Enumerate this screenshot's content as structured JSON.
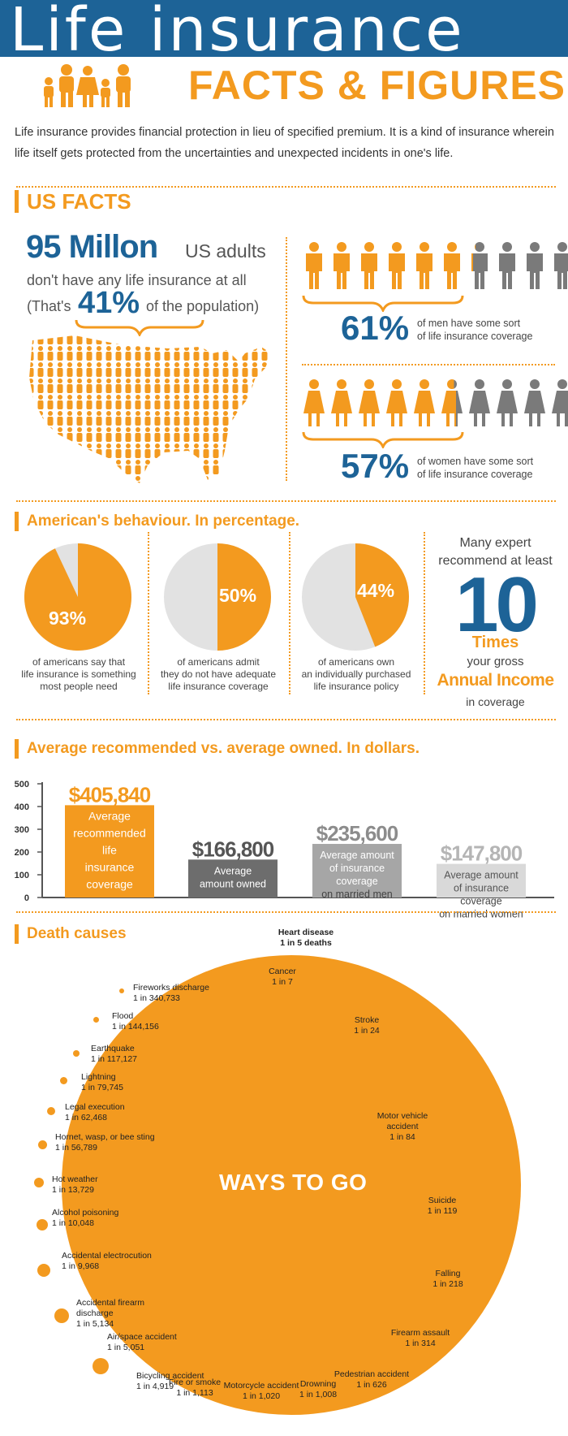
{
  "header": {
    "title": "Life insurance",
    "subtitle": "FACTS & FIGURES",
    "intro": "Life insurance provides financial protection in lieu of specified premium. It is a kind of insurance wherein life itself gets protected from the uncertainties and unexpected incidents in one's life."
  },
  "us_facts": {
    "title": "US FACTS",
    "big_number": "95 Millon",
    "us_adults": "US adults",
    "dont_have": "don't have any life insurance at all",
    "thats": "(That's",
    "pct": "41%",
    "of_population": "of the population)",
    "men": {
      "pct": "61%",
      "text_line1": "of men have some sort",
      "text_line2": "of life insurance coverage",
      "fraction": 0.61
    },
    "women": {
      "pct": "57%",
      "text_line1": "of women have some sort",
      "text_line2": "of life insurance coverage",
      "fraction": 0.57
    }
  },
  "behaviour": {
    "title": "American's behaviour. In percentage.",
    "pies": [
      {
        "pct": "93%",
        "value": 93,
        "line1": "of americans say that",
        "line2": "life insurance is something",
        "line3": "most people need"
      },
      {
        "pct": "50%",
        "value": 50,
        "line1": "of americans admit",
        "line2": "they do not have adequate",
        "line3": "life insurance coverage"
      },
      {
        "pct": "44%",
        "value": 44,
        "line1": "of americans own",
        "line2": "an individually purchased",
        "line3": "life insurance policy"
      }
    ],
    "expert": {
      "line1": "Many expert",
      "line2": "recommend at least",
      "number": "10",
      "times": "Times",
      "gross": "your gross",
      "annual": "Annual Income",
      "coverage": "in coverage"
    }
  },
  "averages": {
    "title": "Average recommended vs. average owned. In dollars.",
    "colors": {
      "orange": "#f39a1f",
      "dark": "#6d6d6d",
      "mid": "#a6a6a6",
      "light": "#d9d9d9"
    }
  },
  "chart_data": {
    "type": "bar",
    "ylim": [
      0,
      500
    ],
    "yticks": [
      "0",
      "100",
      "200",
      "300",
      "400",
      "500"
    ],
    "categories": [
      "Average recommended life insurance coverage",
      "Average amount owned",
      "Average amount of insurance coverage on married men",
      "Average amount of insurance coverage on married women"
    ],
    "values": [
      405.84,
      166.8,
      235.6,
      147.8
    ],
    "value_labels": [
      "$405,840",
      "$166,800",
      "$235,600",
      "$147,800"
    ],
    "bar_lines": [
      [
        "Average",
        "recommended",
        "life",
        "insurance",
        "coverage"
      ],
      [
        "Average",
        "amount owned"
      ],
      [
        "Average amount",
        "of insurance",
        "coverage",
        "on married men"
      ],
      [
        "Average amount",
        "of insurance",
        "coverage",
        "on married women"
      ]
    ]
  },
  "death": {
    "title": "Death causes",
    "center": "WAYS TO GO",
    "top": {
      "name": "Heart disease",
      "odds": "1 in 5 deaths"
    },
    "inside": [
      {
        "name": "Cancer",
        "odds": "1 in 7"
      },
      {
        "name": "Stroke",
        "odds": "1 in 24"
      },
      {
        "name": "Motor vehicle accident",
        "odds": "1 in 84"
      },
      {
        "name": "Suicide",
        "odds": "1 in 119"
      },
      {
        "name": "Falling",
        "odds": "1 in 218"
      },
      {
        "name": "Firearm assault",
        "odds": "1 in 314"
      },
      {
        "name": "Pedestrian accident",
        "odds": "1 in 626"
      },
      {
        "name": "Drowning",
        "odds": "1 in 1,008"
      },
      {
        "name": "Motorcycle accident",
        "odds": "1 in 1,020"
      },
      {
        "name": "Fire or smoke",
        "odds": "1 in 1,113"
      },
      {
        "name": "Bicycling accident",
        "odds": "1 in 4,919"
      }
    ],
    "outside": [
      {
        "name": "Fireworks discharge",
        "odds": "1 in 340,733"
      },
      {
        "name": "Flood",
        "odds": "1 in 144,156"
      },
      {
        "name": "Earthquake",
        "odds": "1 in 117,127"
      },
      {
        "name": "Lightning",
        "odds": "1 in 79,745"
      },
      {
        "name": "Legal execution",
        "odds": "1 in 62,468"
      },
      {
        "name": "Hornet, wasp, or bee sting",
        "odds": "1 in 56,789"
      },
      {
        "name": "Hot weather",
        "odds": "1 in 13,729"
      },
      {
        "name": "Alcohol poisoning",
        "odds": "1 in 10,048"
      },
      {
        "name": "Accidental electrocution",
        "odds": "1 in 9,968"
      },
      {
        "name": "Accidental firearm discharge",
        "odds": "1 in 5,134"
      },
      {
        "name": "Air/space accident",
        "odds": "1 in 5,051"
      }
    ]
  }
}
